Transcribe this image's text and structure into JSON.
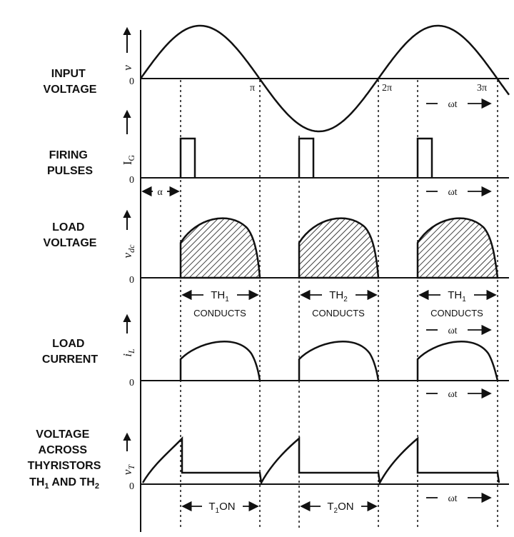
{
  "rows": {
    "input": {
      "label": [
        "INPUT",
        "VOLTAGE"
      ],
      "axis": "v"
    },
    "firing": {
      "label": [
        "FIRING",
        "PULSES"
      ],
      "axis": "I",
      "axis_sub": "G"
    },
    "load_voltage": {
      "label": [
        "LOAD",
        "VOLTAGE"
      ],
      "axis": "v",
      "axis_sub": "dc"
    },
    "load_current": {
      "label": [
        "LOAD",
        "CURRENT"
      ],
      "axis": "i",
      "axis_sub": "L"
    },
    "thyristor": {
      "label": [
        "VOLTAGE",
        "ACROSS",
        "THYRISTORS"
      ],
      "label_last": {
        "a": "TH",
        "a_sub": "1",
        "b": " AND TH",
        "b_sub": "2"
      },
      "axis": "v",
      "axis_sub": "T"
    }
  },
  "zero": "0",
  "ticks": {
    "pi": "π",
    "two_pi": "2π",
    "three_pi": "3π"
  },
  "omega_t": "ωt",
  "alpha": "α",
  "conduction": [
    {
      "th": "TH",
      "sub": "1",
      "text": "CONDUCTS"
    },
    {
      "th": "TH",
      "sub": "2",
      "text": "CONDUCTS"
    },
    {
      "th": "TH",
      "sub": "1",
      "text": "CONDUCTS"
    }
  ],
  "on_periods": [
    {
      "t": "T",
      "sub": "1",
      "text": "ON"
    },
    {
      "t": "T",
      "sub": "2",
      "text": "ON"
    }
  ]
}
